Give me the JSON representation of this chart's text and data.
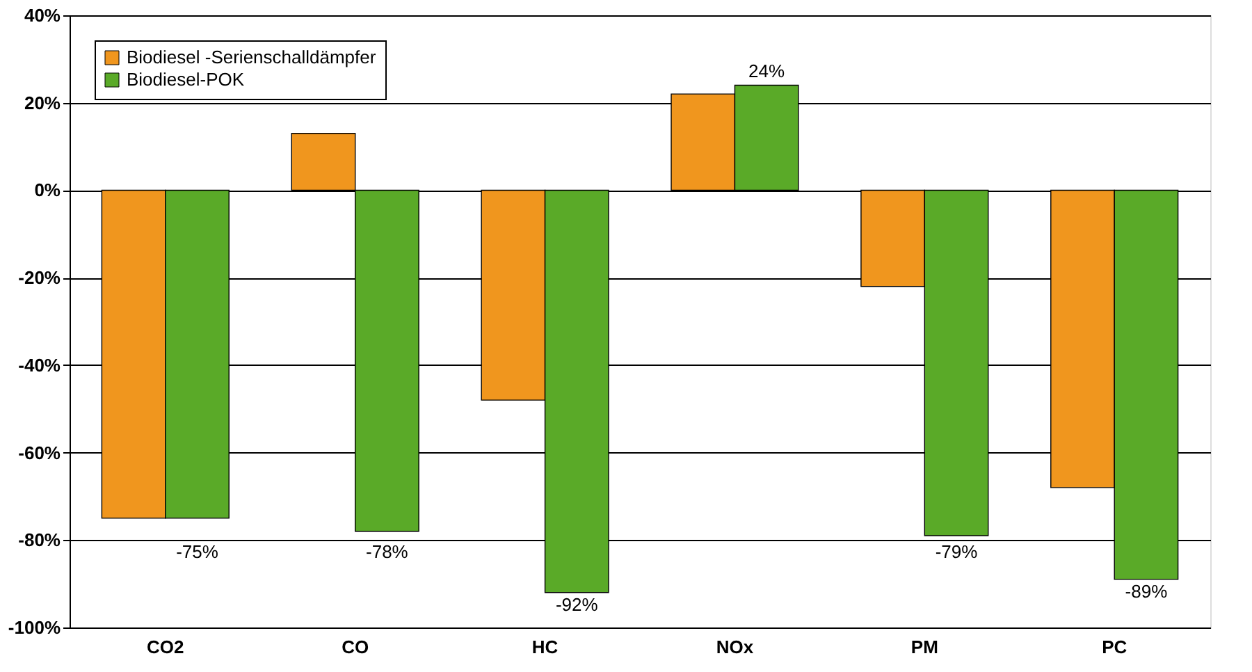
{
  "chart_data": {
    "type": "bar",
    "categories": [
      "CO2",
      "CO",
      "HC",
      "NOx",
      "PM",
      "PC"
    ],
    "series": [
      {
        "name": "Biodiesel -Serienschalldämpfer",
        "color": "#f0961e",
        "values": [
          -75,
          13,
          -48,
          22,
          -22,
          -68
        ]
      },
      {
        "name": "Biodiesel-POK",
        "color": "#5aaa28",
        "values": [
          -75,
          -78,
          -92,
          24,
          -79,
          -89
        ],
        "value_labels": [
          "-75%",
          "-78%",
          "-92%",
          "24%",
          "-79%",
          "-89%"
        ]
      }
    ],
    "ylim": [
      -100,
      40
    ],
    "yticks": [
      {
        "value": -100,
        "label": "-100%"
      },
      {
        "value": -80,
        "label": "-80%"
      },
      {
        "value": -60,
        "label": "-60%"
      },
      {
        "value": -40,
        "label": "-40%"
      },
      {
        "value": -20,
        "label": "-20%"
      },
      {
        "value": 0,
        "label": "0%"
      },
      {
        "value": 20,
        "label": "20%"
      },
      {
        "value": 40,
        "label": "40%"
      }
    ],
    "grid": "y",
    "legend": "top left"
  }
}
